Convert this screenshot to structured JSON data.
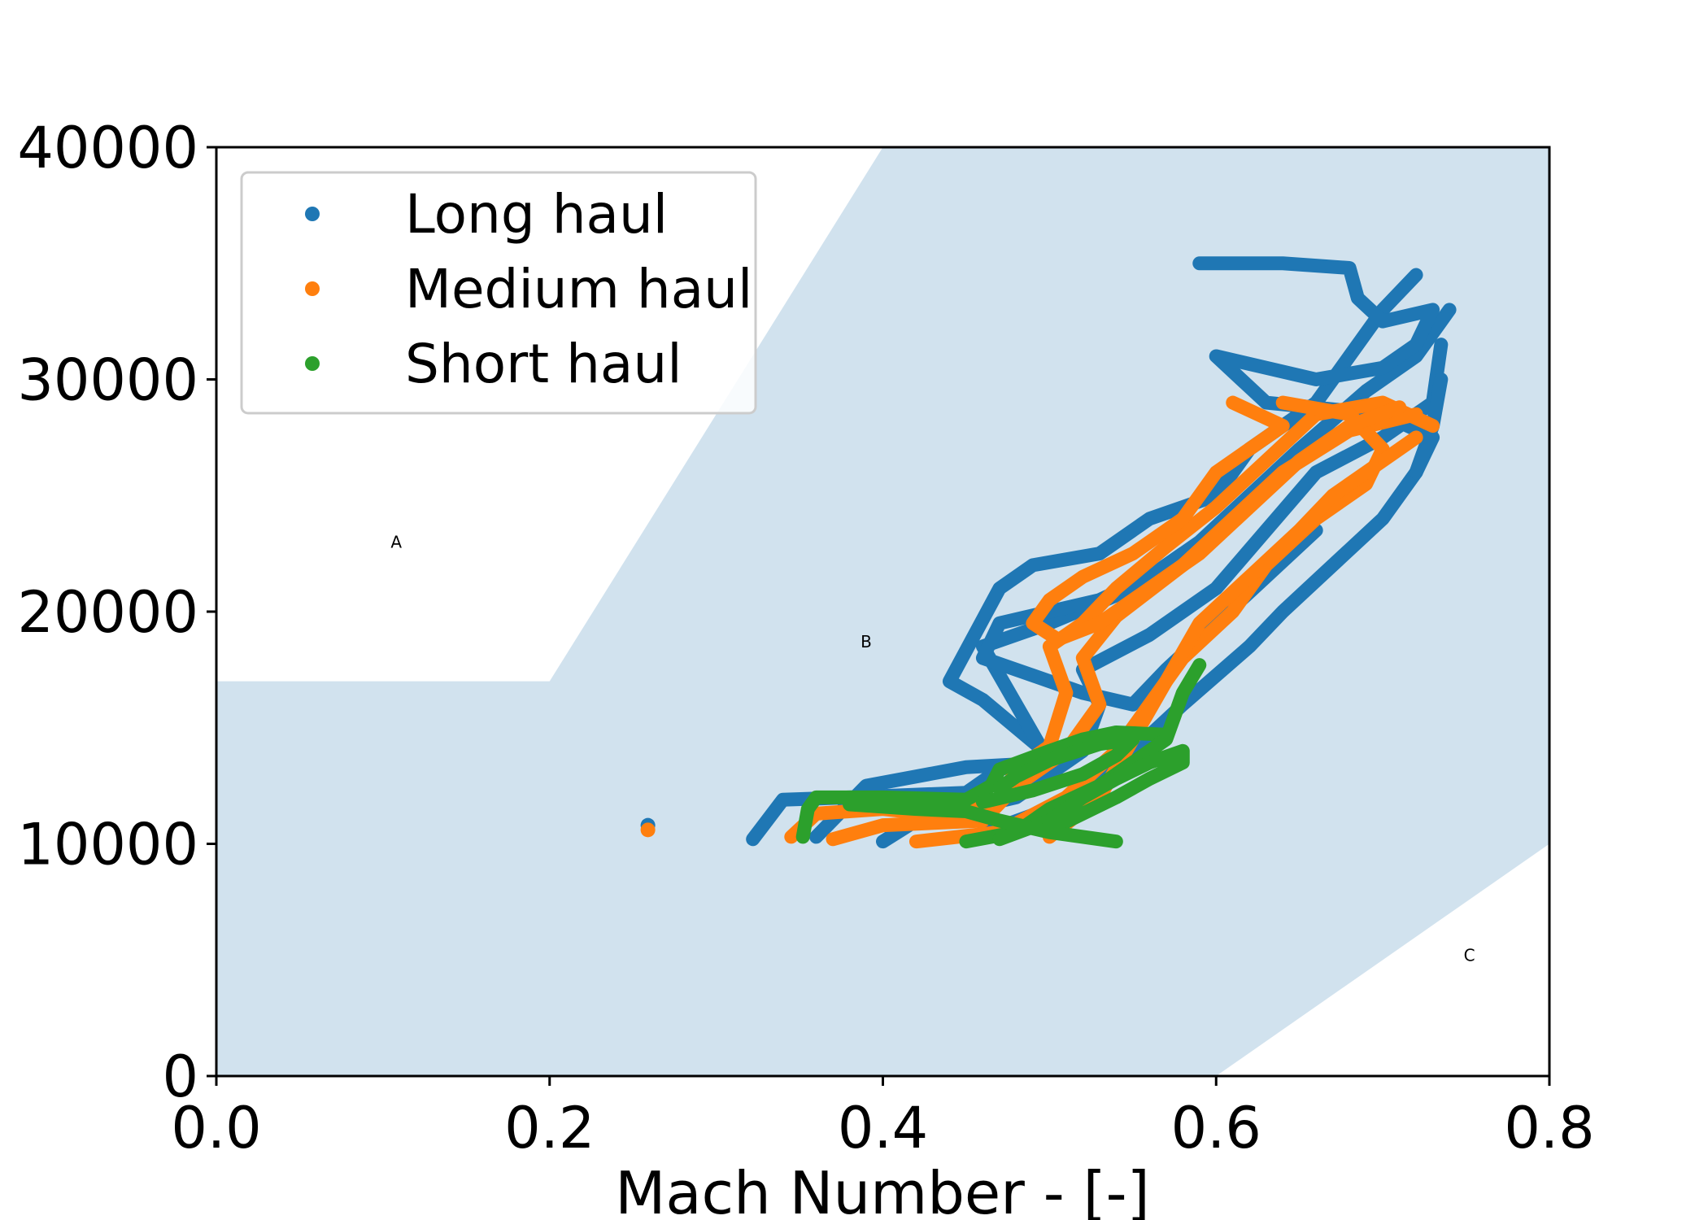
{
  "chart_data": {
    "type": "scatter",
    "title": "",
    "xlabel": "Mach Number - [-]",
    "ylabel": "",
    "xlim": [
      0.0,
      0.8
    ],
    "ylim": [
      0,
      40000
    ],
    "x_ticks": [
      "0.0",
      "0.2",
      "0.4",
      "0.6",
      "0.8"
    ],
    "y_ticks": [
      "0",
      "10000",
      "20000",
      "30000",
      "40000"
    ],
    "grid": false,
    "legend_position": "top-left",
    "region_color": "#d1e2ee",
    "region_vertices": [
      [
        0.0,
        0
      ],
      [
        0.0,
        17000
      ],
      [
        0.2,
        17000
      ],
      [
        0.4,
        40000
      ],
      [
        0.8,
        40000
      ],
      [
        0.8,
        10000
      ],
      [
        0.6,
        0
      ]
    ],
    "region_labels": [
      {
        "text": "A",
        "x": 0.108,
        "y": 23000
      },
      {
        "text": "B",
        "x": 0.39,
        "y": 18700
      },
      {
        "text": "C",
        "x": 0.752,
        "y": 5200
      }
    ],
    "series": [
      {
        "name": "Long haul",
        "color": "#1f77b4",
        "tracks": [
          [
            [
              0.322,
              10200
            ],
            [
              0.34,
              11900
            ],
            [
              0.38,
              12000
            ],
            [
              0.45,
              12200
            ],
            [
              0.47,
              13200
            ],
            [
              0.5,
              13800
            ],
            [
              0.46,
              16200
            ],
            [
              0.44,
              17000
            ],
            [
              0.455,
              19000
            ],
            [
              0.47,
              21000
            ],
            [
              0.49,
              22000
            ],
            [
              0.53,
              22500
            ],
            [
              0.56,
              24000
            ],
            [
              0.6,
              25000
            ],
            [
              0.62,
              27000
            ],
            [
              0.66,
              29000
            ],
            [
              0.68,
              31000
            ],
            [
              0.7,
              33000
            ],
            [
              0.72,
              34500
            ]
          ],
          [
            [
              0.36,
              10300
            ],
            [
              0.39,
              12500
            ],
            [
              0.45,
              13300
            ],
            [
              0.5,
              13500
            ],
            [
              0.48,
              16000
            ],
            [
              0.46,
              18500
            ],
            [
              0.5,
              19500
            ],
            [
              0.55,
              21000
            ],
            [
              0.59,
              23000
            ],
            [
              0.62,
              25000
            ],
            [
              0.65,
              27000
            ],
            [
              0.69,
              29500
            ],
            [
              0.72,
              31000
            ],
            [
              0.74,
              33000
            ]
          ],
          [
            [
              0.4,
              10100
            ],
            [
              0.42,
              11000
            ],
            [
              0.48,
              12000
            ],
            [
              0.52,
              14000
            ],
            [
              0.53,
              16000
            ],
            [
              0.52,
              17500
            ],
            [
              0.56,
              19000
            ],
            [
              0.6,
              21000
            ],
            [
              0.63,
              23500
            ],
            [
              0.66,
              26000
            ],
            [
              0.7,
              27500
            ],
            [
              0.73,
              29000
            ],
            [
              0.735,
              31500
            ]
          ],
          [
            [
              0.45,
              10200
            ],
            [
              0.5,
              11500
            ],
            [
              0.55,
              14000
            ],
            [
              0.58,
              16000
            ],
            [
              0.62,
              18500
            ],
            [
              0.64,
              20000
            ],
            [
              0.67,
              22000
            ],
            [
              0.7,
              24000
            ],
            [
              0.72,
              26000
            ],
            [
              0.73,
              28000
            ],
            [
              0.735,
              30000
            ]
          ],
          [
            [
              0.59,
              35000
            ],
            [
              0.64,
              35000
            ],
            [
              0.68,
              34800
            ],
            [
              0.685,
              33500
            ],
            [
              0.7,
              32500
            ],
            [
              0.73,
              33000
            ],
            [
              0.72,
              31500
            ],
            [
              0.7,
              30500
            ],
            [
              0.66,
              30000
            ],
            [
              0.6,
              31000
            ],
            [
              0.63,
              29000
            ],
            [
              0.7,
              28500
            ],
            [
              0.73,
              27500
            ],
            [
              0.72,
              26000
            ]
          ],
          [
            [
              0.58,
              22500
            ],
            [
              0.56,
              21500
            ],
            [
              0.53,
              20500
            ],
            [
              0.5,
              20000
            ],
            [
              0.47,
              19500
            ],
            [
              0.46,
              18000
            ],
            [
              0.48,
              17500
            ],
            [
              0.52,
              16500
            ],
            [
              0.55,
              16000
            ],
            [
              0.57,
              17500
            ],
            [
              0.6,
              19500
            ],
            [
              0.63,
              21500
            ],
            [
              0.66,
              23500
            ]
          ]
        ],
        "isolated": [
          [
            0.259,
            10800
          ]
        ]
      },
      {
        "name": "Medium haul",
        "color": "#ff7f0e",
        "tracks": [
          [
            [
              0.345,
              10300
            ],
            [
              0.36,
              11300
            ],
            [
              0.4,
              11500
            ],
            [
              0.44,
              11200
            ],
            [
              0.47,
              11800
            ],
            [
              0.48,
              13200
            ],
            [
              0.5,
              14200
            ],
            [
              0.51,
              16500
            ],
            [
              0.5,
              18500
            ],
            [
              0.52,
              19500
            ],
            [
              0.54,
              21000
            ],
            [
              0.57,
              22800
            ],
            [
              0.6,
              24500
            ],
            [
              0.63,
              26500
            ],
            [
              0.66,
              28500
            ],
            [
              0.7,
              29000
            ],
            [
              0.73,
              28000
            ]
          ],
          [
            [
              0.37,
              10200
            ],
            [
              0.4,
              10800
            ],
            [
              0.46,
              11000
            ],
            [
              0.48,
              12500
            ],
            [
              0.51,
              14000
            ],
            [
              0.53,
              16000
            ],
            [
              0.52,
              18000
            ],
            [
              0.54,
              19800
            ],
            [
              0.58,
              22000
            ],
            [
              0.61,
              24000
            ],
            [
              0.64,
              26000
            ],
            [
              0.68,
              27800
            ],
            [
              0.72,
              28500
            ]
          ],
          [
            [
              0.42,
              10100
            ],
            [
              0.47,
              10500
            ],
            [
              0.51,
              12000
            ],
            [
              0.54,
              14000
            ],
            [
              0.56,
              16000
            ],
            [
              0.58,
              18000
            ],
            [
              0.61,
              20000
            ],
            [
              0.63,
              22000
            ],
            [
              0.66,
              24000
            ],
            [
              0.69,
              25500
            ],
            [
              0.7,
              27000
            ],
            [
              0.68,
              28500
            ],
            [
              0.64,
              29000
            ]
          ],
          [
            [
              0.5,
              10300
            ],
            [
              0.53,
              12000
            ],
            [
              0.55,
              14500
            ],
            [
              0.57,
              17000
            ],
            [
              0.59,
              19500
            ],
            [
              0.62,
              21500
            ],
            [
              0.65,
              23500
            ],
            [
              0.67,
              25000
            ],
            [
              0.7,
              26500
            ],
            [
              0.72,
              27500
            ]
          ],
          [
            [
              0.61,
              29000
            ],
            [
              0.64,
              28000
            ],
            [
              0.62,
              27000
            ],
            [
              0.6,
              26000
            ],
            [
              0.58,
              24000
            ],
            [
              0.55,
              22500
            ],
            [
              0.52,
              21500
            ],
            [
              0.5,
              20500
            ],
            [
              0.49,
              19500
            ],
            [
              0.505,
              18800
            ],
            [
              0.53,
              19500
            ],
            [
              0.56,
              21000
            ],
            [
              0.59,
              22500
            ],
            [
              0.62,
              24500
            ],
            [
              0.65,
              26500
            ],
            [
              0.68,
              28000
            ],
            [
              0.71,
              28800
            ]
          ]
        ],
        "isolated": [
          [
            0.259,
            10600
          ]
        ]
      },
      {
        "name": "Short haul",
        "color": "#2ca02c",
        "tracks": [
          [
            [
              0.352,
              10300
            ],
            [
              0.355,
              11500
            ],
            [
              0.36,
              12000
            ],
            [
              0.4,
              12000
            ],
            [
              0.45,
              11900
            ],
            [
              0.465,
              12500
            ],
            [
              0.47,
              13200
            ],
            [
              0.5,
              14000
            ],
            [
              0.52,
              14500
            ],
            [
              0.54,
              14800
            ],
            [
              0.57,
              14700
            ]
          ],
          [
            [
              0.45,
              10100
            ],
            [
              0.48,
              10500
            ],
            [
              0.5,
              11500
            ],
            [
              0.53,
              12500
            ],
            [
              0.55,
              13500
            ],
            [
              0.57,
              14500
            ],
            [
              0.575,
              15500
            ],
            [
              0.58,
              16500
            ],
            [
              0.59,
              17700
            ]
          ],
          [
            [
              0.47,
              10200
            ],
            [
              0.5,
              11000
            ],
            [
              0.52,
              12000
            ],
            [
              0.54,
              12800
            ],
            [
              0.56,
              13500
            ],
            [
              0.58,
              14000
            ],
            [
              0.58,
              13500
            ],
            [
              0.56,
              12800
            ],
            [
              0.54,
              12000
            ],
            [
              0.52,
              11300
            ],
            [
              0.5,
              10600
            ]
          ],
          [
            [
              0.46,
              11800
            ],
            [
              0.49,
              12300
            ],
            [
              0.52,
              13000
            ],
            [
              0.54,
              13800
            ],
            [
              0.55,
              14500
            ],
            [
              0.53,
              14300
            ],
            [
              0.5,
              13600
            ],
            [
              0.48,
              12900
            ],
            [
              0.47,
              12400
            ]
          ],
          [
            [
              0.38,
              11700
            ],
            [
              0.42,
              11500
            ],
            [
              0.45,
              11400
            ],
            [
              0.47,
              11000
            ],
            [
              0.5,
              10500
            ],
            [
              0.53,
              10200
            ],
            [
              0.54,
              10100
            ]
          ]
        ],
        "isolated": []
      }
    ]
  }
}
